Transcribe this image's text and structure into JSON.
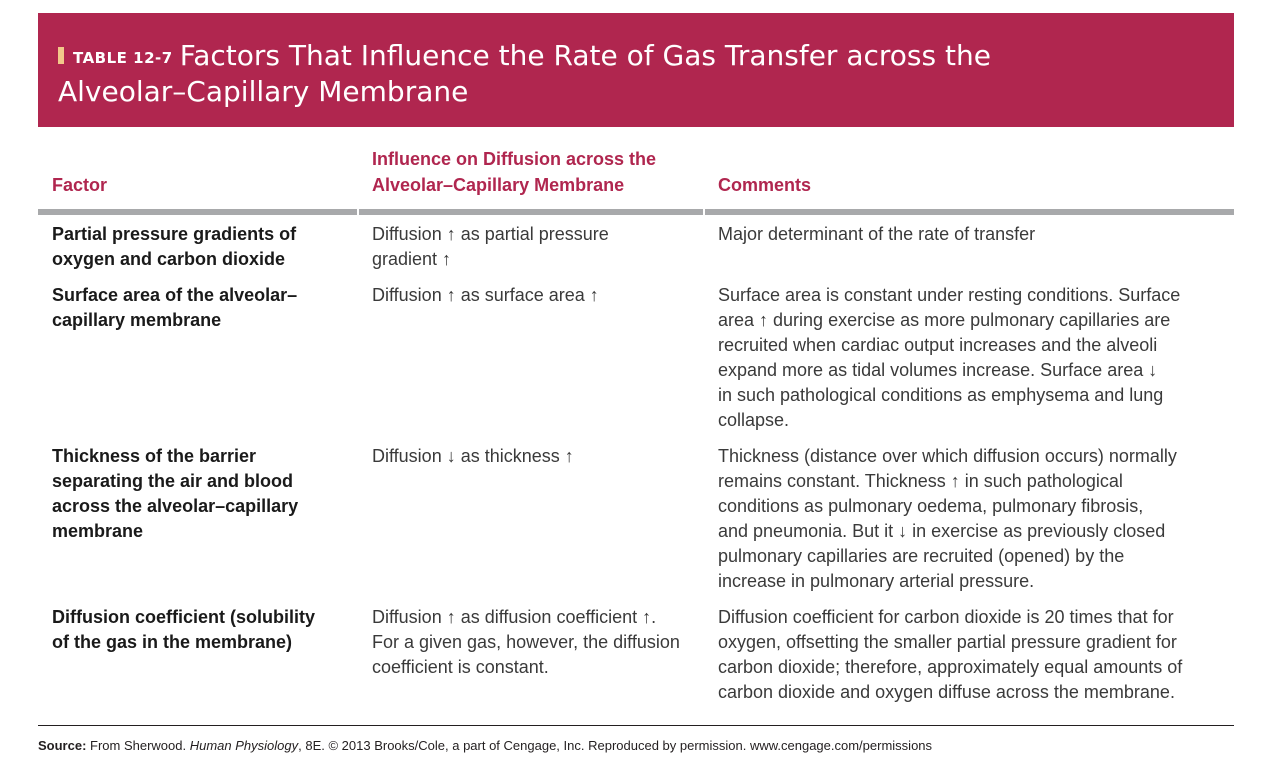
{
  "table": {
    "label": "TABLE 12-7",
    "title_line1": "Factors That Influence the Rate of Gas Transfer across the",
    "title_line2": "Alveolar–Capillary Membrane",
    "headers": {
      "factor": "Factor",
      "influence_line1": "Influence on Diffusion across the",
      "influence_line2": "Alveolar–Capillary Membrane",
      "comments": "Comments"
    },
    "rows": [
      {
        "factor": [
          "Partial pressure gradients of",
          "oxygen and carbon dioxide"
        ],
        "influence": [
          "Diffusion ↑ as partial pressure",
          "gradient ↑"
        ],
        "comments": [
          "Major determinant of the rate of transfer"
        ]
      },
      {
        "factor": [
          "Surface area of the alveolar–",
          "capillary membrane"
        ],
        "influence": [
          "Diffusion ↑ as surface area ↑"
        ],
        "comments": [
          "Surface area is constant under resting conditions. Surface",
          "area ↑ during exercise as more pulmonary capillaries are",
          "recruited when cardiac output increases and the alveoli",
          "expand more as tidal volumes increase. Surface area ↓",
          "in such pathological conditions as emphysema and lung",
          "collapse."
        ]
      },
      {
        "factor": [
          "Thickness of the barrier",
          "separating the air and blood",
          "across the alveolar–capillary",
          "membrane"
        ],
        "influence": [
          "Diffusion ↓ as thickness ↑"
        ],
        "comments": [
          "Thickness (distance over which diffusion occurs) normally",
          "remains constant. Thickness ↑ in such pathological",
          "conditions as pulmonary oedema, pulmonary fibrosis,",
          "and pneumonia. But it ↓ in exercise as previously closed",
          "pulmonary capillaries are recruited (opened) by the",
          "increase in pulmonary arterial pressure."
        ]
      },
      {
        "factor": [
          "Diffusion coefficient (solubility",
          "of the gas in the membrane)"
        ],
        "influence": [
          "Diffusion ↑ as diffusion coefficient ↑.",
          "For a given gas, however, the diffusion",
          "coefficient is constant."
        ],
        "comments": [
          "Diffusion coefficient for carbon dioxide is 20 times that for",
          "oxygen, offsetting the smaller partial pressure gradient for",
          "carbon dioxide; therefore, approximately equal amounts of",
          "carbon dioxide and oxygen diffuse across the membrane."
        ]
      }
    ]
  },
  "source": {
    "label": "Source:",
    "text_a": " From Sherwood. ",
    "book": "Human Physiology",
    "text_b": ", 8E. © 2013 Brooks/Cole, a part of Cengage, Inc. Reproduced by permission. www.cengage.com/permissions"
  },
  "colors": {
    "banner": "#b0264f",
    "header_text": "#b0264f",
    "accent_bar": "#f2c88a",
    "rule": "#a8a9ab"
  }
}
